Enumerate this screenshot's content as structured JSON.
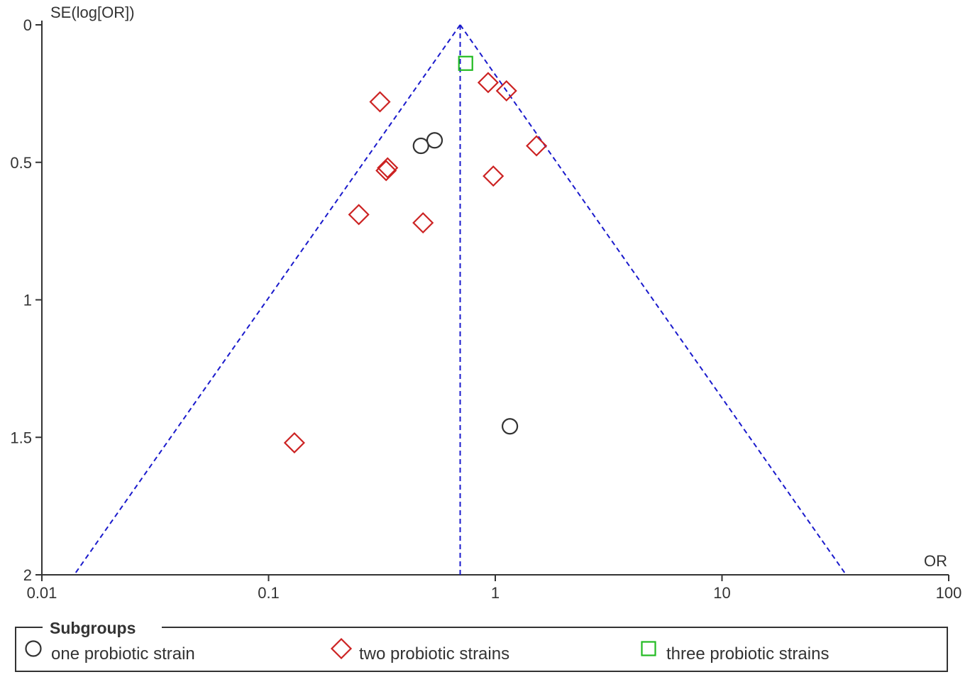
{
  "chart_data": {
    "type": "scatter",
    "title": "",
    "xlabel": "OR",
    "ylabel": "SE(log[OR])",
    "x_scale": "log",
    "xlim": [
      0.01,
      100
    ],
    "ylim": [
      0,
      2
    ],
    "y_inverted": true,
    "x_ticks": [
      0.01,
      0.1,
      1,
      10,
      100
    ],
    "x_tick_labels": [
      "0.01",
      "0.1",
      "1",
      "10",
      "100"
    ],
    "y_ticks": [
      0,
      0.5,
      1,
      1.5,
      2
    ],
    "y_tick_labels": [
      "0",
      "0.5",
      "1",
      "1.5",
      "2"
    ],
    "grid": false,
    "pooled_or": 0.7,
    "funnel_limits": "95% pseudo-confidence limits (pooled OR × exp(±1.96·SE))",
    "line_color": "#1a1acc",
    "legend": {
      "title": "Subgroups",
      "placement": "bottom",
      "items": [
        {
          "label": "one probiotic strain",
          "series": 0
        },
        {
          "label": "two probiotic strains",
          "series": 1
        },
        {
          "label": "three probiotic strains",
          "series": 2
        }
      ]
    },
    "series": [
      {
        "name": "one probiotic strain",
        "marker": "circle",
        "color": "#333333",
        "points": [
          {
            "x": 0.47,
            "y": 0.44
          },
          {
            "x": 0.54,
            "y": 0.42
          },
          {
            "x": 1.16,
            "y": 1.46
          }
        ]
      },
      {
        "name": "two probiotic strains",
        "marker": "diamond",
        "color": "#cc2222",
        "points": [
          {
            "x": 0.31,
            "y": 0.28
          },
          {
            "x": 0.33,
            "y": 0.53
          },
          {
            "x": 0.335,
            "y": 0.52
          },
          {
            "x": 0.25,
            "y": 0.69
          },
          {
            "x": 0.48,
            "y": 0.72
          },
          {
            "x": 0.93,
            "y": 0.21
          },
          {
            "x": 1.12,
            "y": 0.24
          },
          {
            "x": 1.52,
            "y": 0.44
          },
          {
            "x": 0.98,
            "y": 0.55
          },
          {
            "x": 0.13,
            "y": 1.52
          }
        ]
      },
      {
        "name": "three probiotic strains",
        "marker": "square",
        "color": "#22bb22",
        "points": [
          {
            "x": 0.74,
            "y": 0.14
          }
        ]
      }
    ]
  }
}
